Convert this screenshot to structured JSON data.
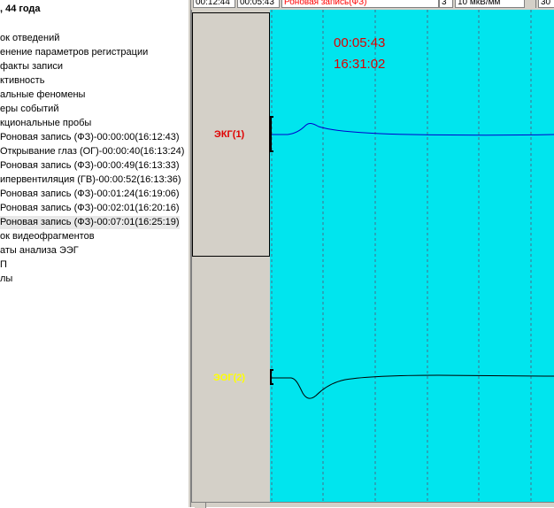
{
  "tree": {
    "title": ", 44 года",
    "items": [
      {
        "label": "ок отведений",
        "selected": false
      },
      {
        "label": "енение параметров регистрации",
        "selected": false
      },
      {
        "label": "факты записи",
        "selected": false
      },
      {
        "label": "ктивность",
        "selected": false
      },
      {
        "label": "альные феномены",
        "selected": false
      },
      {
        "label": "еры событий",
        "selected": false
      },
      {
        "label": "кциональные пробы",
        "selected": false
      },
      {
        "label": "Роновая запись (ФЗ)-00:00:00(16:12:43)",
        "selected": false
      },
      {
        "label": "Открывание глаз (ОГ)-00:00:40(16:13:24)",
        "selected": false
      },
      {
        "label": "Роновая запись (ФЗ)-00:00:49(16:13:33)",
        "selected": false
      },
      {
        "label": "ипервентиляция (ГВ)-00:00:52(16:13:36)",
        "selected": false
      },
      {
        "label": "Роновая запись (ФЗ)-00:01:24(16:19:06)",
        "selected": false
      },
      {
        "label": "Роновая запись (ФЗ)-00:02:01(16:20:16)",
        "selected": false
      },
      {
        "label": "Роновая запись (ФЗ)-00:07:01(16:25:19)",
        "selected": true
      },
      {
        "label": "ок видеофрагментов",
        "selected": false
      },
      {
        "label": "аты анализа ЭЭГ",
        "selected": false
      },
      {
        "label": "П",
        "selected": false
      },
      {
        "label": "лы",
        "selected": false
      }
    ]
  },
  "toolbar": {
    "time_total": "00:12:44",
    "time_current": "00:05:43",
    "mode": "Роновая запись(ФЗ)",
    "page_num": "3",
    "sensitivity": "10 мкВ/мм",
    "extra": "30"
  },
  "plot": {
    "elapsed_time": "00:05:43",
    "clock_time": "16:31:02",
    "background_color": "#00e5ee"
  },
  "channels": [
    {
      "label": "ЭКГ(1)",
      "color": "#e00000",
      "trace_color": "#0000cc"
    },
    {
      "label": "ЭОГ(2)",
      "color": "#ffff00",
      "trace_color": "#000000"
    }
  ]
}
